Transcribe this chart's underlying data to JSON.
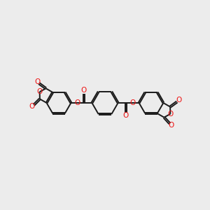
{
  "bg_color": "#ececec",
  "bond_color": "#1a1a1a",
  "oxygen_color": "#ee1111",
  "bond_width": 1.4,
  "dbo": 0.038,
  "font_size": 7.5,
  "figsize": [
    3.0,
    3.0
  ],
  "dpi": 100,
  "xlim": [
    0,
    10
  ],
  "ylim": [
    0,
    10
  ],
  "ring_r": 0.6,
  "anhy_ring_r": 0.58
}
